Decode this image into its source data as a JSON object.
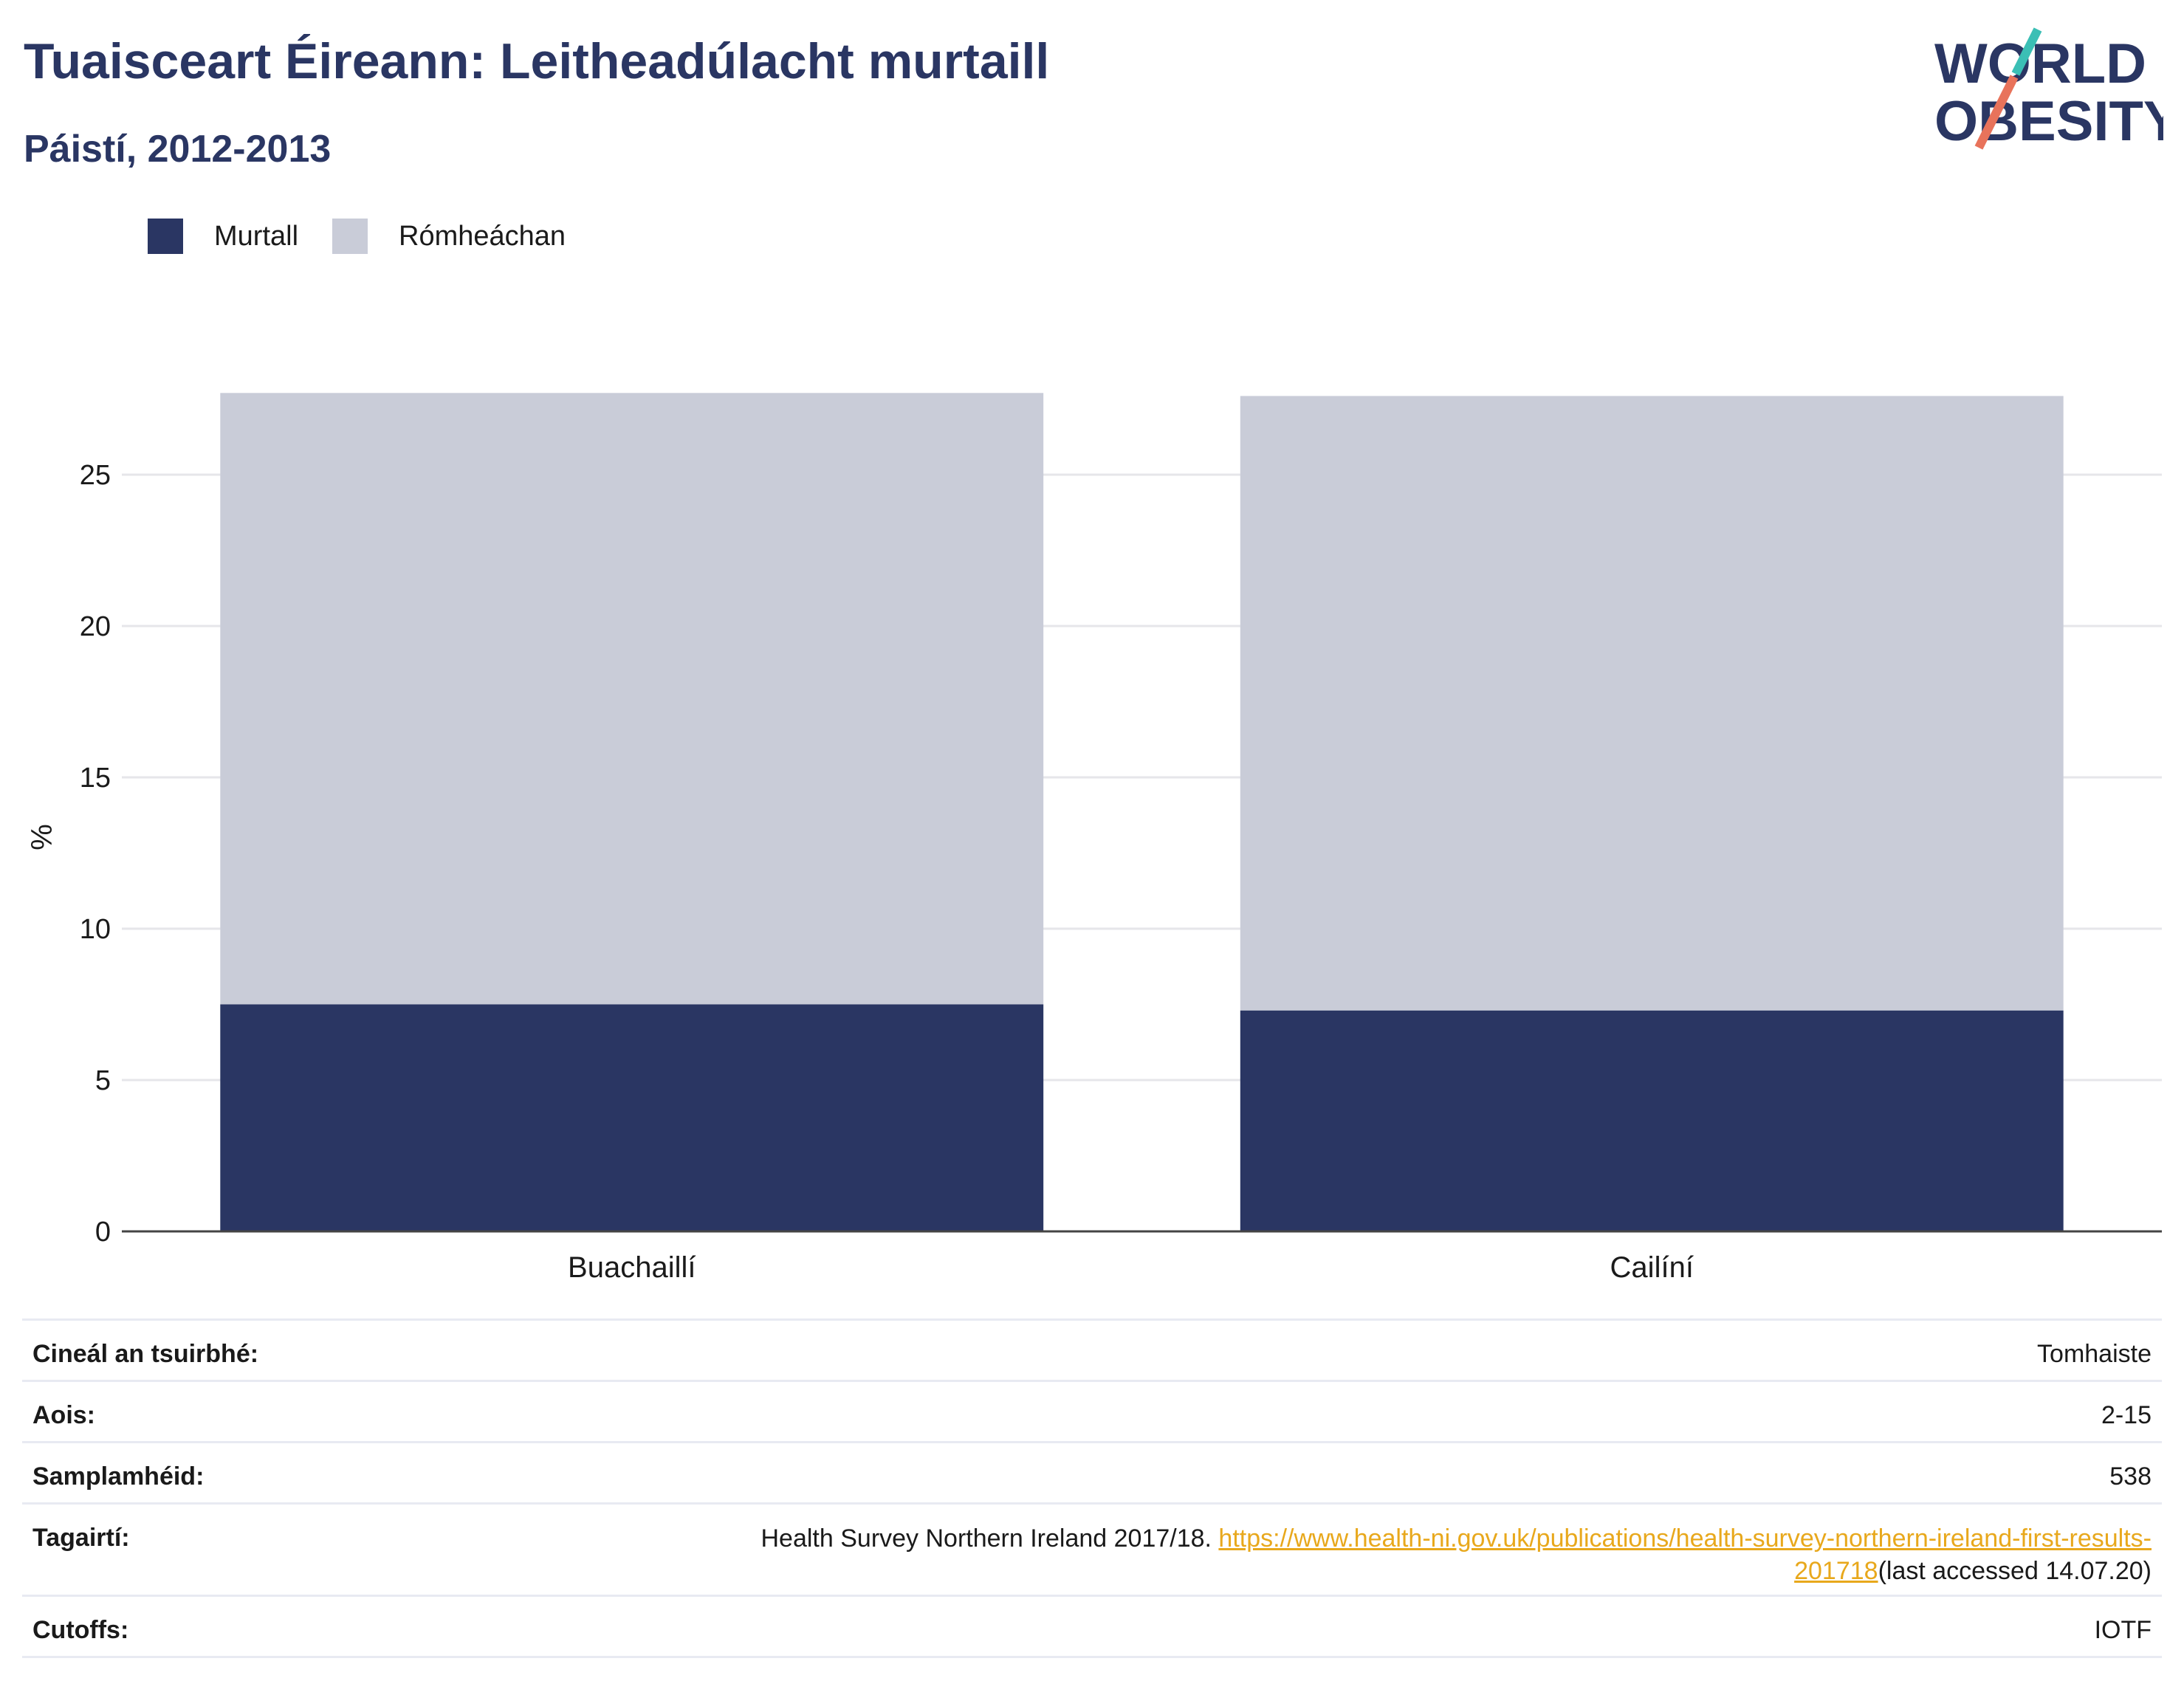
{
  "header": {
    "title": "Tuaisceart Éireann: Leitheadúlacht murtaill",
    "subtitle": "Páistí, 2012-2013"
  },
  "logo": {
    "line1": "WORLD",
    "line2": "OBESITY",
    "accent1": "#3bbfb5",
    "accent2": "#e8735b"
  },
  "legend": [
    {
      "label": "Murtall",
      "color": "#2a3663"
    },
    {
      "label": "Rómheáchan",
      "color": "#c9ccd8"
    }
  ],
  "chart_data": {
    "type": "bar",
    "stacked": true,
    "categories": [
      "Buachaillí",
      "Cailíní"
    ],
    "series": [
      {
        "name": "Murtall",
        "values": [
          7.5,
          7.3
        ],
        "color": "#2a3663"
      },
      {
        "name": "Rómheáchan",
        "values": [
          20.2,
          20.3
        ],
        "color": "#c9ccd8"
      }
    ],
    "ylabel": "%",
    "ylim": [
      0,
      28
    ],
    "yticks": [
      0,
      5,
      10,
      15,
      20,
      25
    ],
    "grid": true,
    "legend_position": "top-left"
  },
  "info": {
    "survey_type": {
      "label": "Cineál an tsuirbhé:",
      "value": "Tomhaiste"
    },
    "age": {
      "label": "Aois:",
      "value": "2-15"
    },
    "sample": {
      "label": "Samplamhéid:",
      "value": "538"
    },
    "references": {
      "label": "Tagairtí:",
      "text": "Health Survey Northern Ireland 2017/18. ",
      "link_part1": "https://www.health-ni.gov.uk/publications/health-survey-northern-ireland-first-results-",
      "link_part2": "201718",
      "suffix": "(last accessed 14.07.20)"
    },
    "cutoffs": {
      "label": "Cutoffs:",
      "value": "IOTF"
    }
  }
}
